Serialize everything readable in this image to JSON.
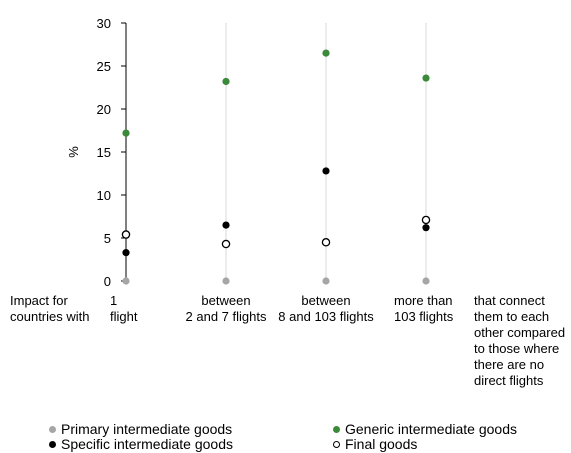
{
  "chart_data": {
    "type": "scatter",
    "ylabel": "%",
    "ylim": [
      0,
      30
    ],
    "yticks": [
      0,
      5,
      10,
      15,
      20,
      25,
      30
    ],
    "grid": "vertical lines at categories",
    "row_prefix": [
      "Impact for",
      "countries with"
    ],
    "categories": [
      [
        "1",
        "flight"
      ],
      [
        "between",
        "2 and 7 flights"
      ],
      [
        "between",
        "8 and 103 flights"
      ],
      [
        "more than",
        "103 flights"
      ]
    ],
    "row_suffix": [
      "that connect",
      "them to each",
      "other compared",
      "to those where",
      "there are no",
      "direct flights"
    ],
    "series": [
      {
        "name": "Primary intermediate goods",
        "color": "#a6a6a6",
        "marker": "filled",
        "values": [
          0,
          0,
          0,
          0
        ]
      },
      {
        "name": "Generic intermediate goods",
        "color": "#3a8a3a",
        "marker": "filled",
        "values": [
          17.2,
          23.2,
          26.5,
          23.6
        ]
      },
      {
        "name": "Specific intermediate goods",
        "color": "#000000",
        "marker": "filled",
        "values": [
          3.3,
          6.5,
          12.8,
          6.2
        ]
      },
      {
        "name": "Final goods",
        "color": "#000000",
        "marker": "hollow",
        "values": [
          5.4,
          4.3,
          4.5,
          7.1
        ]
      }
    ],
    "legend_position": "bottom"
  }
}
